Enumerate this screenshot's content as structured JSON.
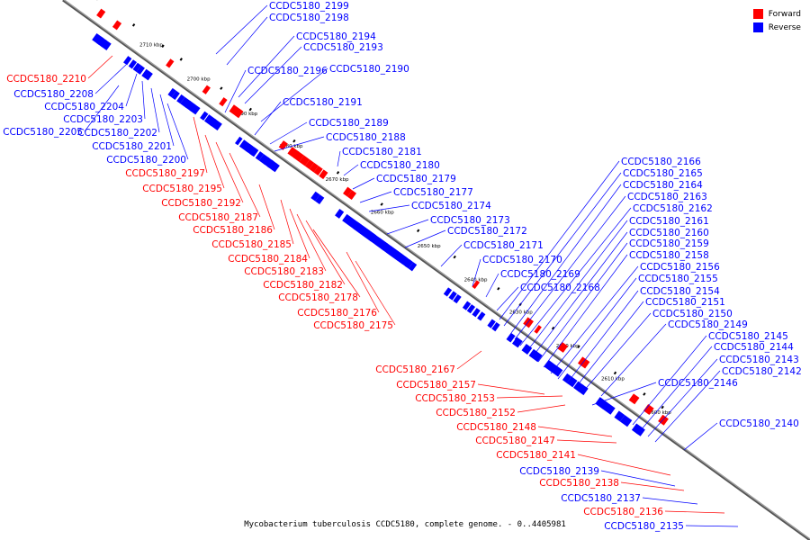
{
  "caption": "Mycobacterium tuberculosis CCDC5180, complete genome. - 0..4405981",
  "legend": [
    {
      "label": "Forward",
      "color": "#ff0000"
    },
    {
      "label": "Reverse",
      "color": "#0000ff"
    }
  ],
  "colors": {
    "forward": "#ff0000",
    "reverse": "#0000ff",
    "axis": "#777777"
  },
  "ticks": [
    "2710 kbp",
    "2700 kbp",
    "2690 kbp",
    "2680 kbp",
    "2670 kbp",
    "2660 kbp",
    "2650 kbp",
    "2640 kbp",
    "2630 kbp",
    "2620 kbp",
    "2610 kbp",
    "2600 kbp"
  ],
  "reverse_genes": [
    "CCDC5180_2199",
    "CCDC5180_2198",
    "CCDC5180_2194",
    "CCDC5180_2193",
    "CCDC5180_2196",
    "CCDC5180_2190",
    "CCDC5180_2191",
    "CCDC5180_2189",
    "CCDC5180_2188",
    "CCDC5180_2181",
    "CCDC5180_2180",
    "CCDC5180_2179",
    "CCDC5180_2177",
    "CCDC5180_2174",
    "CCDC5180_2173",
    "CCDC5180_2172",
    "CCDC5180_2171",
    "CCDC5180_2170",
    "CCDC5180_2169",
    "CCDC5180_2168",
    "CCDC5180_2166",
    "CCDC5180_2165",
    "CCDC5180_2164",
    "CCDC5180_2163",
    "CCDC5180_2162",
    "CCDC5180_2161",
    "CCDC5180_2160",
    "CCDC5180_2159",
    "CCDC5180_2158",
    "CCDC5180_2156",
    "CCDC5180_2155",
    "CCDC5180_2154",
    "CCDC5180_2151",
    "CCDC5180_2150",
    "CCDC5180_2149",
    "CCDC5180_2145",
    "CCDC5180_2144",
    "CCDC5180_2143",
    "CCDC5180_2142",
    "CCDC5180_2146",
    "CCDC5180_2140"
  ],
  "left_reverse_genes": [
    "CCDC5180_2208",
    "CCDC5180_2204",
    "CCDC5180_2203",
    "CCDC5180_2205",
    "CCDC5180_2202",
    "CCDC5180_2201",
    "CCDC5180_2200",
    "CCDC5180_2139",
    "CCDC5180_2137",
    "CCDC5180_2135"
  ],
  "forward_genes": [
    "CCDC5180_2210",
    "CCDC5180_2197",
    "CCDC5180_2195",
    "CCDC5180_2192",
    "CCDC5180_2187",
    "CCDC5180_2186",
    "CCDC5180_2185",
    "CCDC5180_2184",
    "CCDC5180_2183",
    "CCDC5180_2182",
    "CCDC5180_2178",
    "CCDC5180_2176",
    "CCDC5180_2175",
    "CCDC5180_2167",
    "CCDC5180_2157",
    "CCDC5180_2153",
    "CCDC5180_2152",
    "CCDC5180_2148",
    "CCDC5180_2147",
    "CCDC5180_2141",
    "CCDC5180_2138",
    "CCDC5180_2136"
  ]
}
